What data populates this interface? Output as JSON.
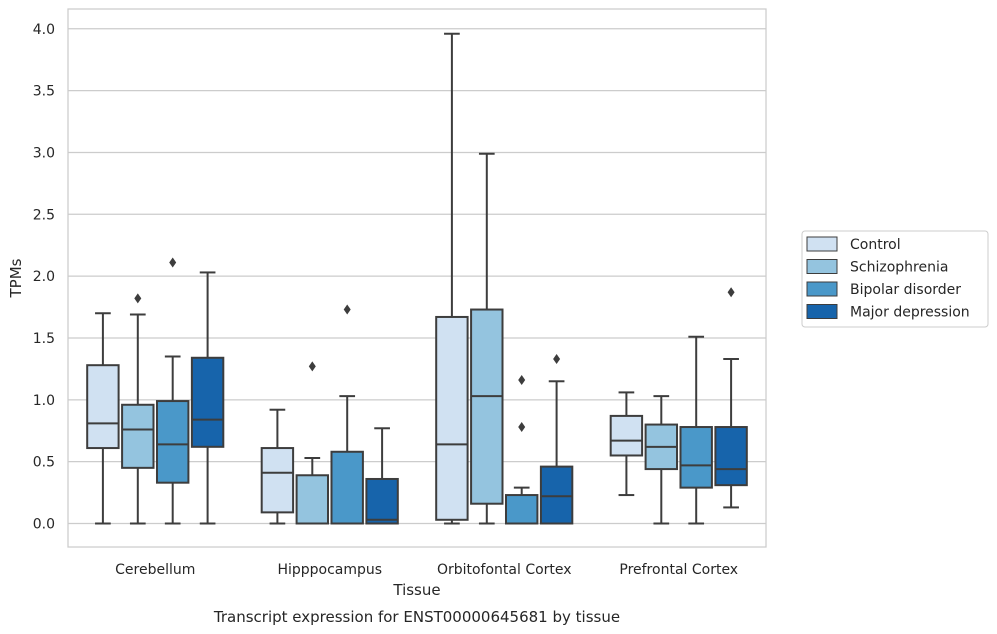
{
  "chart_data": {
    "type": "boxplot",
    "title": "",
    "caption": "Transcript expression for ENST00000645681 by tissue",
    "xlabel": "Tissue",
    "ylabel": "TPMs",
    "ylim": [
      -0.19,
      4.16
    ],
    "yticks": [
      0.0,
      0.5,
      1.0,
      1.5,
      2.0,
      2.5,
      3.0,
      3.5,
      4.0
    ],
    "ytick_labels": [
      "0.0",
      "0.5",
      "1.0",
      "1.5",
      "2.0",
      "2.5",
      "3.0",
      "3.5",
      "4.0"
    ],
    "grid": "horizontal",
    "legend_position": "right",
    "categories": [
      "Cerebellum",
      "Hipppocampus",
      "Orbitofontal Cortex",
      "Prefrontal Cortex"
    ],
    "series": [
      {
        "name": "Control",
        "color": "#d0e1f2",
        "boxes": [
          {
            "whislo": 0.0,
            "q1": 0.61,
            "med": 0.81,
            "q3": 1.28,
            "whishi": 1.7,
            "fliers": []
          },
          {
            "whislo": 0.0,
            "q1": 0.09,
            "med": 0.41,
            "q3": 0.61,
            "whishi": 0.92,
            "fliers": []
          },
          {
            "whislo": 0.0,
            "q1": 0.03,
            "med": 0.64,
            "q3": 1.67,
            "whishi": 3.96,
            "fliers": []
          },
          {
            "whislo": 0.23,
            "q1": 0.55,
            "med": 0.67,
            "q3": 0.87,
            "whishi": 1.06,
            "fliers": []
          }
        ]
      },
      {
        "name": "Schizophrenia",
        "color": "#94c4df",
        "boxes": [
          {
            "whislo": 0.0,
            "q1": 0.45,
            "med": 0.76,
            "q3": 0.96,
            "whishi": 1.69,
            "fliers": [
              1.82
            ]
          },
          {
            "whislo": 0.0,
            "q1": 0.0,
            "med": 0.0,
            "q3": 0.39,
            "whishi": 0.53,
            "fliers": [
              1.27
            ]
          },
          {
            "whislo": 0.0,
            "q1": 0.16,
            "med": 1.03,
            "q3": 1.73,
            "whishi": 2.99,
            "fliers": []
          },
          {
            "whislo": 0.0,
            "q1": 0.44,
            "med": 0.62,
            "q3": 0.8,
            "whishi": 1.03,
            "fliers": []
          }
        ]
      },
      {
        "name": "Bipolar disorder",
        "color": "#4a98c9",
        "boxes": [
          {
            "whislo": 0.0,
            "q1": 0.33,
            "med": 0.64,
            "q3": 0.99,
            "whishi": 1.35,
            "fliers": [
              2.11
            ]
          },
          {
            "whislo": 0.0,
            "q1": 0.0,
            "med": 0.0,
            "q3": 0.58,
            "whishi": 1.03,
            "fliers": [
              1.73
            ]
          },
          {
            "whislo": 0.0,
            "q1": 0.0,
            "med": 0.0,
            "q3": 0.23,
            "whishi": 0.29,
            "fliers": [
              0.78,
              1.16
            ]
          },
          {
            "whislo": 0.0,
            "q1": 0.29,
            "med": 0.47,
            "q3": 0.78,
            "whishi": 1.51,
            "fliers": []
          }
        ]
      },
      {
        "name": "Major depression",
        "color": "#1764ab",
        "boxes": [
          {
            "whislo": 0.0,
            "q1": 0.62,
            "med": 0.84,
            "q3": 1.34,
            "whishi": 2.03,
            "fliers": []
          },
          {
            "whislo": 0.0,
            "q1": 0.0,
            "med": 0.03,
            "q3": 0.36,
            "whishi": 0.77,
            "fliers": []
          },
          {
            "whislo": 0.0,
            "q1": 0.0,
            "med": 0.22,
            "q3": 0.46,
            "whishi": 1.15,
            "fliers": [
              1.33
            ]
          },
          {
            "whislo": 0.13,
            "q1": 0.31,
            "med": 0.44,
            "q3": 0.78,
            "whishi": 1.33,
            "fliers": [
              1.87
            ]
          }
        ]
      }
    ]
  }
}
